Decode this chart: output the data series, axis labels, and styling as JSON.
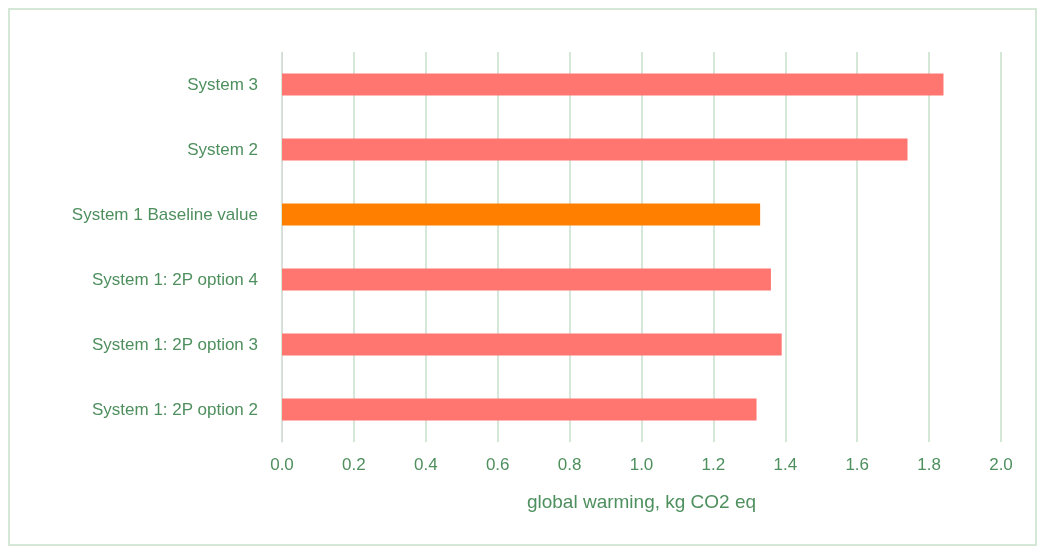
{
  "chart_data": {
    "type": "bar",
    "orientation": "horizontal",
    "xlabel": "global warming, kg CO2 eq",
    "categories": [
      "System 3",
      "System 2",
      "System 1 Baseline value",
      "System 1: 2P option 4",
      "System 1: 2P option 3",
      "System 1: 2P option 2"
    ],
    "values": [
      1.84,
      1.74,
      1.33,
      1.36,
      1.39,
      1.32
    ],
    "colors": [
      "#ff7570",
      "#ff7570",
      "#ff8000",
      "#ff7570",
      "#ff7570",
      "#ff7570"
    ],
    "xlim": [
      0,
      2
    ],
    "xticks": [
      {
        "value": 0,
        "label": "0.0"
      },
      {
        "value": 0.2,
        "label": "0.2"
      },
      {
        "value": 0.4,
        "label": "0.4"
      },
      {
        "value": 0.6,
        "label": "0.6"
      },
      {
        "value": 0.8,
        "label": "0.8"
      },
      {
        "value": 1,
        "label": "1.0"
      },
      {
        "value": 1.2,
        "label": "1.2"
      },
      {
        "value": 1.4,
        "label": "1.4"
      },
      {
        "value": 1.6,
        "label": "1.6"
      },
      {
        "value": 1.8,
        "label": "1.8"
      },
      {
        "value": 2,
        "label": "2.0"
      }
    ],
    "grid": "x"
  }
}
